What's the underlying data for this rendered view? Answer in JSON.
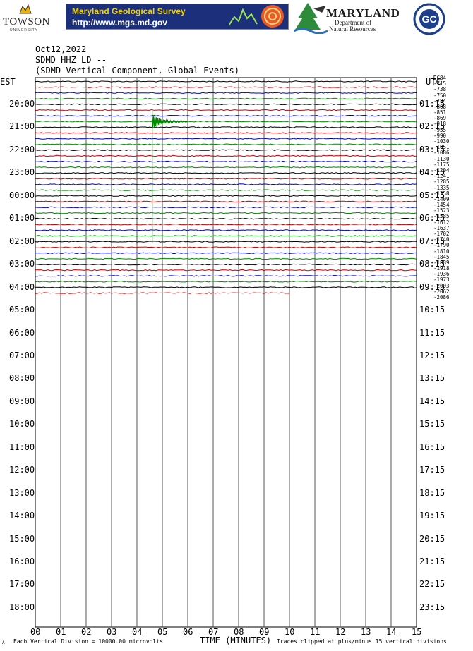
{
  "header": {
    "towson_name": "TOWSON",
    "towson_sub": "UNIVERSITY",
    "mgs_title": "Maryland Geological Survey",
    "mgs_url": "http://www.mgs.md.gov",
    "dnr_name": "MARYLAND",
    "dnr_sub1": "Department of",
    "dnr_sub2": "Natural Resources",
    "gc_logo": "GC",
    "colors": {
      "banner_bg": "#1c2f7a",
      "banner_title": "#f2d400",
      "banner_url": "#ffffff"
    }
  },
  "plot_header": {
    "date": "Oct12,2022",
    "station": "SDMD HHZ LD --",
    "description": "(SDMD Vertical Component, Global Events)"
  },
  "axes": {
    "left_label": "EST",
    "right_label": "UTC",
    "xlabel": "TIME (MINUTES)",
    "footer_left": "Each Vertical Division = 10000.00 microvolts",
    "footer_right": "Traces clipped at plus/minus 15 vertical divisions",
    "corner_mark": "A"
  },
  "chart_data": {
    "type": "line",
    "title": "Oct12,2022",
    "subtitle": "SDMD HHZ LD --",
    "xlabel": "TIME (MINUTES)",
    "xlim": [
      0,
      15
    ],
    "x_ticks": [
      "00",
      "01",
      "02",
      "03",
      "04",
      "05",
      "06",
      "07",
      "08",
      "09",
      "10",
      "11",
      "12",
      "13",
      "14",
      "15"
    ],
    "left_time_labels": [
      "20:00",
      "21:00",
      "22:00",
      "23:00",
      "00:00",
      "01:00",
      "02:00",
      "03:00",
      "04:00",
      "05:00",
      "06:00",
      "07:00",
      "08:00",
      "09:00",
      "10:00",
      "11:00",
      "12:00",
      "13:00",
      "14:00",
      "15:00",
      "16:00",
      "17:00",
      "18:00"
    ],
    "right_time_labels": [
      "01:15",
      "02:15",
      "03:15",
      "04:15",
      "05:15",
      "06:15",
      "07:15",
      "08:15",
      "09:15",
      "10:15",
      "11:15",
      "12:15",
      "13:15",
      "14:15",
      "15:15",
      "16:15",
      "17:15",
      "18:15",
      "19:15",
      "20:15",
      "21:15",
      "22:15",
      "23:15"
    ],
    "right_counts": [
      "DC84",
      "-715",
      "-738",
      "-750",
      "-784",
      "-808",
      "-851",
      "-869",
      "-918",
      "-955",
      "-990",
      "-1030",
      "-1051",
      "-1086",
      "-1130",
      "-1175",
      "-1204",
      "-1241",
      "-1285",
      "-1335",
      "-1358",
      "-1409",
      "-1454",
      "-1523",
      "-1585",
      "-1612",
      "-1637",
      "-1702",
      "-1740",
      "-1790",
      "-1810",
      "-1845",
      "-1889",
      "-1918",
      "-1936",
      "-1973",
      "-2003",
      "-2062",
      "-2086"
    ],
    "trace_colors": [
      "#000000",
      "#cc0000",
      "#0000cc",
      "#008800"
    ],
    "trace_count": 38,
    "last_trace_end_minute": 10,
    "event": {
      "trace_index": 7,
      "minute": 4.6,
      "note": "large amplitude arrival"
    },
    "grid": true,
    "vertical_division_microvolts": 10000.0,
    "clip_divisions": 15
  }
}
